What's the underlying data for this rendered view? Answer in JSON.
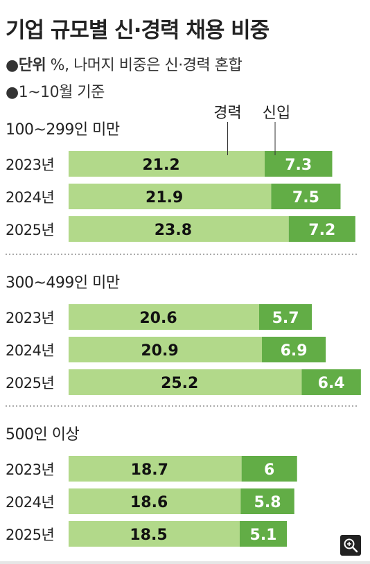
{
  "title": "기업 규모별 신·경력 채용 비중",
  "notes": {
    "unit_label": "단위",
    "unit_text": " %, 나머지 비중은 신·경력 혼합",
    "period": "1~10월 기준"
  },
  "colors": {
    "career": "#b2d98a",
    "new": "#62ad46",
    "text": "#111111"
  },
  "chart_data": {
    "type": "bar",
    "stacked": true,
    "orientation": "horizontal",
    "legend": [
      "경력",
      "신입"
    ],
    "categories": [
      "2023년",
      "2024년",
      "2025년"
    ],
    "groups": [
      {
        "label": "100~299인 미만",
        "series": [
          {
            "name": "경력",
            "values": [
              21.2,
              21.9,
              23.8
            ]
          },
          {
            "name": "신입",
            "values": [
              7.3,
              7.5,
              7.2
            ]
          }
        ]
      },
      {
        "label": "300~499인 미만",
        "series": [
          {
            "name": "경력",
            "values": [
              20.6,
              20.9,
              25.2
            ]
          },
          {
            "name": "신입",
            "values": [
              5.7,
              6.9,
              6.4
            ]
          }
        ]
      },
      {
        "label": "500인 이상",
        "series": [
          {
            "name": "경력",
            "values": [
              18.7,
              18.6,
              18.5
            ]
          },
          {
            "name": "신입",
            "values": [
              6,
              5.8,
              5.1
            ]
          }
        ]
      }
    ]
  },
  "icons": {
    "zoom": "magnifier-plus-icon"
  }
}
